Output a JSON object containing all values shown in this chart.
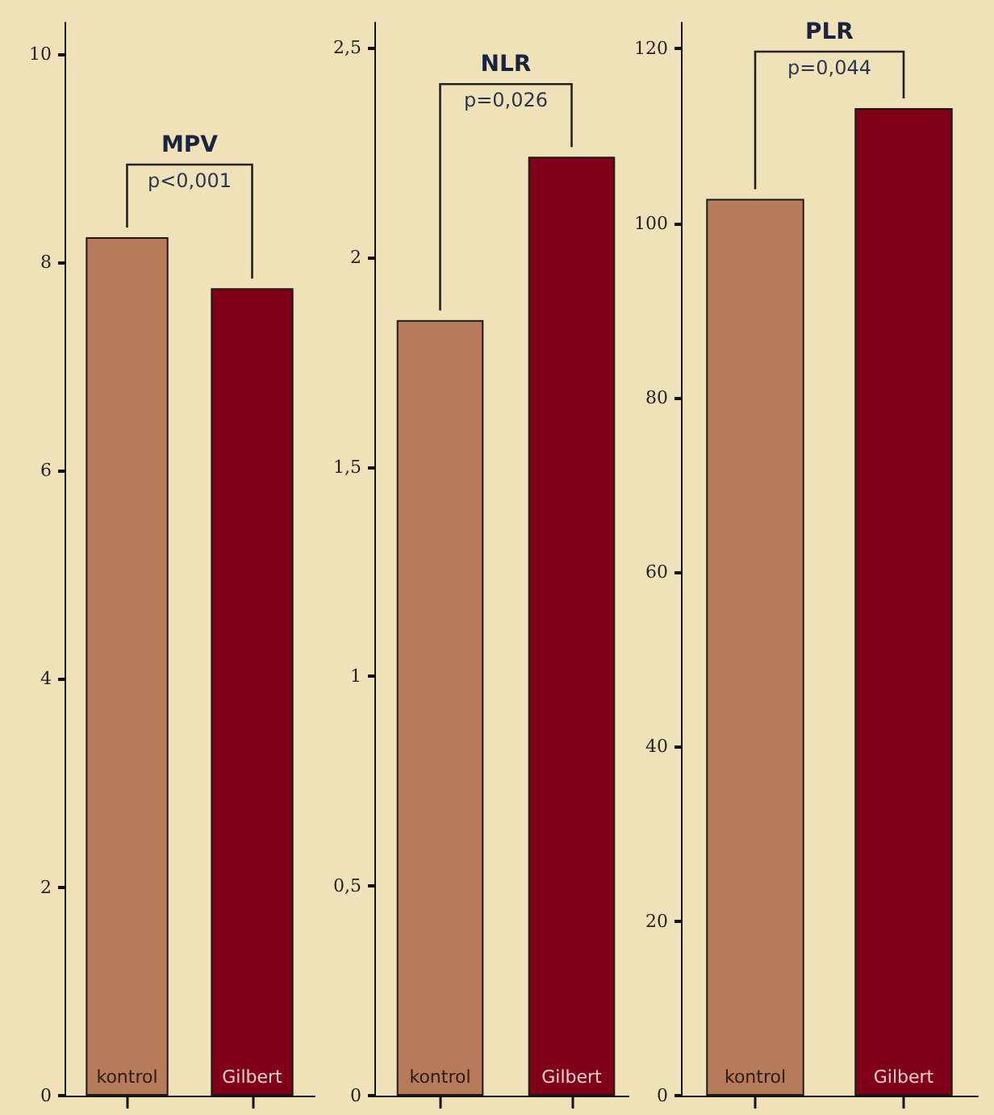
{
  "chart_data": [
    {
      "type": "bar",
      "title": "MPV",
      "categories": [
        "kontrol",
        "Gilbert"
      ],
      "values": [
        8.24,
        7.75
      ],
      "colors": [
        "#b87b5a",
        "#800018"
      ],
      "ylim": [
        0,
        10.3
      ],
      "yticks": [
        0,
        2,
        4,
        6,
        8,
        10
      ],
      "annotations": [
        "p<0,001"
      ]
    },
    {
      "type": "bar",
      "title": "NLR",
      "categories": [
        "kontrol",
        "Gilbert"
      ],
      "values": [
        1.85,
        2.24
      ],
      "colors": [
        "#b87b5a",
        "#800018"
      ],
      "ylim": [
        0,
        2.56
      ],
      "yticks": [
        0,
        {
          "value": 0.5,
          "label": "0,5"
        },
        1,
        {
          "value": 1.5,
          "label": "1,5"
        },
        2,
        {
          "value": 2.5,
          "label": "2,5"
        }
      ],
      "annotations": [
        "p=0,026"
      ]
    },
    {
      "type": "bar",
      "title": "PLR",
      "categories": [
        "kontrol",
        "Gilbert"
      ],
      "values": [
        102.8,
        113.2
      ],
      "colors": [
        "#b87b5a",
        "#800018"
      ],
      "ylim": [
        0,
        123
      ],
      "yticks": [
        0,
        20,
        40,
        60,
        80,
        100,
        120
      ],
      "annotations": [
        "p=0,044"
      ]
    }
  ]
}
